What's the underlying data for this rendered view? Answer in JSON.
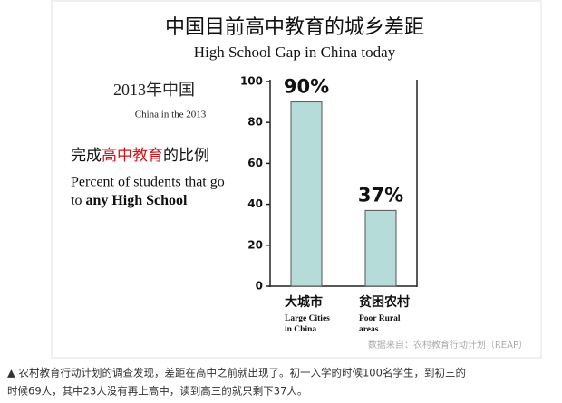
{
  "chart_data": {
    "type": "bar",
    "title": "中国目前高中教育的城乡差距",
    "subtitle": "High School Gap in China today",
    "year_heading": "2013年中国",
    "year_subheading": "China in the 2013",
    "metric_zh": [
      "完成",
      "高中教育",
      "的比例"
    ],
    "metric_en": [
      "Percent of students that go",
      "to ",
      "any High School"
    ],
    "categories": [
      "大城市",
      "贫困农村"
    ],
    "category_notes": [
      [
        "Large Cities",
        "in China"
      ],
      [
        "Poor Rural",
        "areas"
      ]
    ],
    "values": [
      90,
      37
    ],
    "value_labels": [
      "90%",
      "37%"
    ],
    "color": "#b5dcd8",
    "ylim": [
      0,
      100
    ],
    "yticks": [
      0,
      20,
      40,
      60,
      80,
      100
    ],
    "source": "数据来自：农村教育行动计划（REAP）"
  },
  "caption": [
    "▲ 农村教育行动计划的调查发现，差距在高中之前就出现了。初一入学的时候100名学生，到初三的",
    "时候69人，其中23人没有再上高中，读到高三的就只剩下37人。"
  ]
}
